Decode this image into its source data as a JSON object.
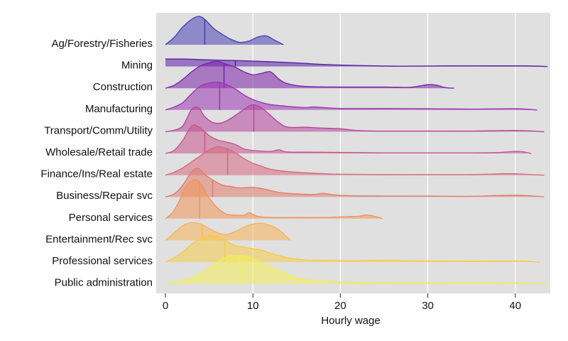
{
  "chart_data": {
    "type": "ridgeline",
    "title": "",
    "xlabel": "Hourly wage",
    "ylabel": "",
    "xlim": [
      0,
      44
    ],
    "xticks": [
      0,
      10,
      20,
      30,
      40
    ],
    "grid": true,
    "background": "#e0e0e0",
    "series": [
      {
        "name": "Ag/Forestry/Fisheries",
        "color": "#4b41b5",
        "median": 4.5,
        "max": 13.5,
        "density": [
          [
            0,
            0
          ],
          [
            1,
            0.25
          ],
          [
            2,
            0.6
          ],
          [
            3,
            0.85
          ],
          [
            3.8,
            0.95
          ],
          [
            4.5,
            0.85
          ],
          [
            5.5,
            0.55
          ],
          [
            6.5,
            0.35
          ],
          [
            7.5,
            0.18
          ],
          [
            8.5,
            0.08
          ],
          [
            9.5,
            0.12
          ],
          [
            10.5,
            0.25
          ],
          [
            11.5,
            0.3
          ],
          [
            12.5,
            0.15
          ],
          [
            13.5,
            0
          ]
        ]
      },
      {
        "name": "Mining",
        "color": "#5a1fa6",
        "median": 8.0,
        "max": 43.7,
        "density": [
          [
            0,
            0.25
          ],
          [
            2,
            0.25
          ],
          [
            5,
            0.22
          ],
          [
            8,
            0.2
          ],
          [
            11,
            0.17
          ],
          [
            15,
            0.12
          ],
          [
            18,
            0.07
          ],
          [
            21,
            0.04
          ],
          [
            24,
            0.02
          ],
          [
            27,
            0.01
          ],
          [
            32,
            0.02
          ],
          [
            37,
            0.02
          ],
          [
            41,
            0.02
          ],
          [
            43.7,
            0
          ]
        ]
      },
      {
        "name": "Construction",
        "color": "#7a24a8",
        "median": 6.7,
        "max": 33,
        "density": [
          [
            0,
            0
          ],
          [
            1,
            0.1
          ],
          [
            2,
            0.3
          ],
          [
            3,
            0.55
          ],
          [
            4,
            0.75
          ],
          [
            5,
            0.85
          ],
          [
            6,
            0.9
          ],
          [
            7,
            0.8
          ],
          [
            8,
            0.7
          ],
          [
            9,
            0.55
          ],
          [
            10,
            0.45
          ],
          [
            11,
            0.5
          ],
          [
            12,
            0.55
          ],
          [
            13,
            0.3
          ],
          [
            14,
            0.15
          ],
          [
            16,
            0.06
          ],
          [
            20,
            0.04
          ],
          [
            25,
            0.04
          ],
          [
            28,
            0.03
          ],
          [
            30,
            0.12
          ],
          [
            31,
            0.1
          ],
          [
            32,
            0.02
          ],
          [
            33,
            0
          ]
        ]
      },
      {
        "name": "Manufacturing",
        "color": "#9c36b3",
        "median": 6.2,
        "max": 42.5,
        "density": [
          [
            0,
            0
          ],
          [
            1,
            0.1
          ],
          [
            2,
            0.25
          ],
          [
            3,
            0.55
          ],
          [
            4,
            0.8
          ],
          [
            5,
            0.9
          ],
          [
            6,
            0.93
          ],
          [
            7,
            0.85
          ],
          [
            8,
            0.7
          ],
          [
            9,
            0.5
          ],
          [
            10,
            0.35
          ],
          [
            11,
            0.25
          ],
          [
            12,
            0.18
          ],
          [
            14,
            0.12
          ],
          [
            16,
            0.08
          ],
          [
            17,
            0.1
          ],
          [
            20,
            0.05
          ],
          [
            25,
            0.05
          ],
          [
            30,
            0.04
          ],
          [
            35,
            0.03
          ],
          [
            40,
            0.04
          ],
          [
            42.5,
            0
          ]
        ]
      },
      {
        "name": "Transport/Comm/Utility",
        "color": "#b6469c",
        "median": 10.1,
        "max": 43.3,
        "density": [
          [
            0,
            0
          ],
          [
            1,
            0.05
          ],
          [
            2,
            0.2
          ],
          [
            3,
            0.75
          ],
          [
            3.8,
            0.8
          ],
          [
            4.5,
            0.5
          ],
          [
            5.5,
            0.3
          ],
          [
            6.5,
            0.3
          ],
          [
            7.5,
            0.45
          ],
          [
            8.5,
            0.65
          ],
          [
            9.5,
            0.85
          ],
          [
            10.1,
            0.9
          ],
          [
            11,
            0.8
          ],
          [
            12,
            0.55
          ],
          [
            13,
            0.3
          ],
          [
            14,
            0.15
          ],
          [
            16,
            0.15
          ],
          [
            18,
            0.12
          ],
          [
            20,
            0.1
          ],
          [
            22,
            0.04
          ],
          [
            25,
            0.02
          ],
          [
            30,
            0.02
          ],
          [
            35,
            0.02
          ],
          [
            40,
            0.04
          ],
          [
            43.3,
            0
          ]
        ]
      },
      {
        "name": "Wholesale/Retail trade",
        "color": "#c9568c",
        "median": 4.5,
        "max": 41.8,
        "density": [
          [
            0,
            0
          ],
          [
            1,
            0.1
          ],
          [
            2,
            0.45
          ],
          [
            2.8,
            0.85
          ],
          [
            3.3,
            0.95
          ],
          [
            4,
            0.85
          ],
          [
            5,
            0.6
          ],
          [
            6,
            0.45
          ],
          [
            7,
            0.38
          ],
          [
            8,
            0.3
          ],
          [
            9,
            0.15
          ],
          [
            10,
            0.1
          ],
          [
            12,
            0.07
          ],
          [
            13,
            0.12
          ],
          [
            14,
            0.05
          ],
          [
            18,
            0.04
          ],
          [
            25,
            0.02
          ],
          [
            30,
            0.02
          ],
          [
            35,
            0.02
          ],
          [
            38,
            0.03
          ],
          [
            40,
            0.07
          ],
          [
            41,
            0.05
          ],
          [
            41.8,
            0
          ]
        ]
      },
      {
        "name": "Finance/Ins/Real estate",
        "color": "#d66a7e",
        "median": 7.1,
        "max": 43.3,
        "density": [
          [
            0,
            0
          ],
          [
            1,
            0.1
          ],
          [
            2,
            0.25
          ],
          [
            3,
            0.45
          ],
          [
            4,
            0.65
          ],
          [
            5,
            0.85
          ],
          [
            6,
            0.95
          ],
          [
            7,
            0.9
          ],
          [
            8,
            0.75
          ],
          [
            9,
            0.55
          ],
          [
            10,
            0.4
          ],
          [
            11,
            0.3
          ],
          [
            12,
            0.2
          ],
          [
            14,
            0.12
          ],
          [
            16,
            0.08
          ],
          [
            18,
            0.05
          ],
          [
            20,
            0.03
          ],
          [
            25,
            0.02
          ],
          [
            30,
            0.02
          ],
          [
            35,
            0.02
          ],
          [
            39,
            0.05
          ],
          [
            41,
            0.03
          ],
          [
            43.3,
            0
          ]
        ]
      },
      {
        "name": "Business/Repair svc",
        "color": "#e07e6d",
        "median": 5.4,
        "max": 43.3,
        "density": [
          [
            0,
            0
          ],
          [
            1,
            0.1
          ],
          [
            2,
            0.4
          ],
          [
            3,
            0.85
          ],
          [
            3.8,
            0.95
          ],
          [
            4.5,
            0.75
          ],
          [
            5.5,
            0.55
          ],
          [
            6.5,
            0.4
          ],
          [
            7.5,
            0.35
          ],
          [
            8.5,
            0.3
          ],
          [
            10,
            0.32
          ],
          [
            11.5,
            0.25
          ],
          [
            13,
            0.15
          ],
          [
            15,
            0.1
          ],
          [
            17,
            0.08
          ],
          [
            18,
            0.12
          ],
          [
            20,
            0.05
          ],
          [
            25,
            0.03
          ],
          [
            30,
            0.03
          ],
          [
            35,
            0.02
          ],
          [
            40,
            0.06
          ],
          [
            43.3,
            0
          ]
        ]
      },
      {
        "name": "Personal services",
        "color": "#f0965a",
        "median": 3.9,
        "max": 24.8,
        "density": [
          [
            0,
            0
          ],
          [
            0.8,
            0.2
          ],
          [
            1.6,
            0.6
          ],
          [
            2.3,
            1.05
          ],
          [
            3,
            1.25
          ],
          [
            3.6,
            1.3
          ],
          [
            4.2,
            1.1
          ],
          [
            5,
            0.7
          ],
          [
            6,
            0.35
          ],
          [
            7,
            0.15
          ],
          [
            8,
            0.12
          ],
          [
            9,
            0.12
          ],
          [
            9.6,
            0.2
          ],
          [
            10.5,
            0.08
          ],
          [
            12,
            0.04
          ],
          [
            15,
            0.04
          ],
          [
            18,
            0.04
          ],
          [
            20,
            0.06
          ],
          [
            22,
            0.08
          ],
          [
            23,
            0.12
          ],
          [
            24,
            0.07
          ],
          [
            24.8,
            0
          ]
        ]
      },
      {
        "name": "Entertainment/Rec svc",
        "color": "#f7b45a",
        "median": 4.2,
        "max": 14.3,
        "density": [
          [
            0,
            0
          ],
          [
            1,
            0.25
          ],
          [
            2,
            0.5
          ],
          [
            3,
            0.6
          ],
          [
            4,
            0.55
          ],
          [
            5,
            0.4
          ],
          [
            6,
            0.25
          ],
          [
            7,
            0.2
          ],
          [
            8,
            0.3
          ],
          [
            9,
            0.45
          ],
          [
            10,
            0.55
          ],
          [
            11,
            0.57
          ],
          [
            12,
            0.5
          ],
          [
            13,
            0.35
          ],
          [
            14.3,
            0
          ]
        ]
      },
      {
        "name": "Professional services",
        "color": "#f4cc4a",
        "median": 6.8,
        "max": 42.8,
        "density": [
          [
            0,
            0
          ],
          [
            1,
            0.15
          ],
          [
            2,
            0.35
          ],
          [
            3,
            0.6
          ],
          [
            4,
            0.8
          ],
          [
            5,
            0.9
          ],
          [
            6,
            0.85
          ],
          [
            7,
            0.7
          ],
          [
            8,
            0.55
          ],
          [
            9,
            0.5
          ],
          [
            10,
            0.45
          ],
          [
            11,
            0.4
          ],
          [
            12,
            0.3
          ],
          [
            14,
            0.15
          ],
          [
            16,
            0.08
          ],
          [
            18,
            0.06
          ],
          [
            22,
            0.05
          ],
          [
            25,
            0.06
          ],
          [
            30,
            0.04
          ],
          [
            35,
            0.03
          ],
          [
            40,
            0.04
          ],
          [
            42.8,
            0
          ]
        ]
      },
      {
        "name": "Public administration",
        "color": "#f2ee55",
        "median": 8.5,
        "max": 43.8,
        "density": [
          [
            0,
            0
          ],
          [
            1,
            0.05
          ],
          [
            2,
            0.12
          ],
          [
            3,
            0.2
          ],
          [
            4,
            0.35
          ],
          [
            5,
            0.55
          ],
          [
            6,
            0.75
          ],
          [
            7,
            0.9
          ],
          [
            8,
            0.95
          ],
          [
            9,
            0.93
          ],
          [
            10,
            0.85
          ],
          [
            11,
            0.72
          ],
          [
            12,
            0.58
          ],
          [
            13,
            0.45
          ],
          [
            14,
            0.32
          ],
          [
            15,
            0.2
          ],
          [
            17,
            0.12
          ],
          [
            20,
            0.06
          ],
          [
            25,
            0.04
          ],
          [
            30,
            0.03
          ],
          [
            35,
            0.03
          ],
          [
            40,
            0.03
          ],
          [
            43.8,
            0
          ]
        ]
      }
    ]
  }
}
